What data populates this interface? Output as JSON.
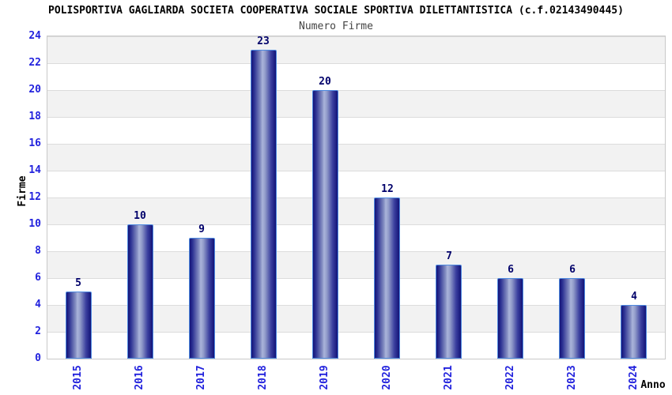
{
  "chart_data": {
    "type": "bar",
    "title": "POLISPORTIVA GAGLIARDA SOCIETA COOPERATIVA SOCIALE SPORTIVA DILETTANTISTICA (c.f.02143490445)",
    "subtitle": "Numero Firme",
    "xlabel": "Anno",
    "ylabel": "Firme",
    "categories": [
      "2015",
      "2016",
      "2017",
      "2018",
      "2019",
      "2020",
      "2021",
      "2022",
      "2023",
      "2024"
    ],
    "values": [
      5,
      10,
      9,
      23,
      20,
      12,
      7,
      6,
      6,
      4
    ],
    "ylim": [
      0,
      24
    ],
    "ytick_step": 2,
    "legend": "none",
    "grid": "horizontal gridlines every 2 units with alternating white and gray bands",
    "colors": {
      "title": "#000000",
      "subtitle": "#444444",
      "tick_label": "#2222dd",
      "value_label": "#00006a",
      "bar_edge": "#4e8ae0",
      "bar_dark": "#131378",
      "bar_light": "#aab4da",
      "band_gray": "#f2f2f2",
      "band_white": "#ffffff",
      "plot_border": "#c9c9c9"
    }
  }
}
